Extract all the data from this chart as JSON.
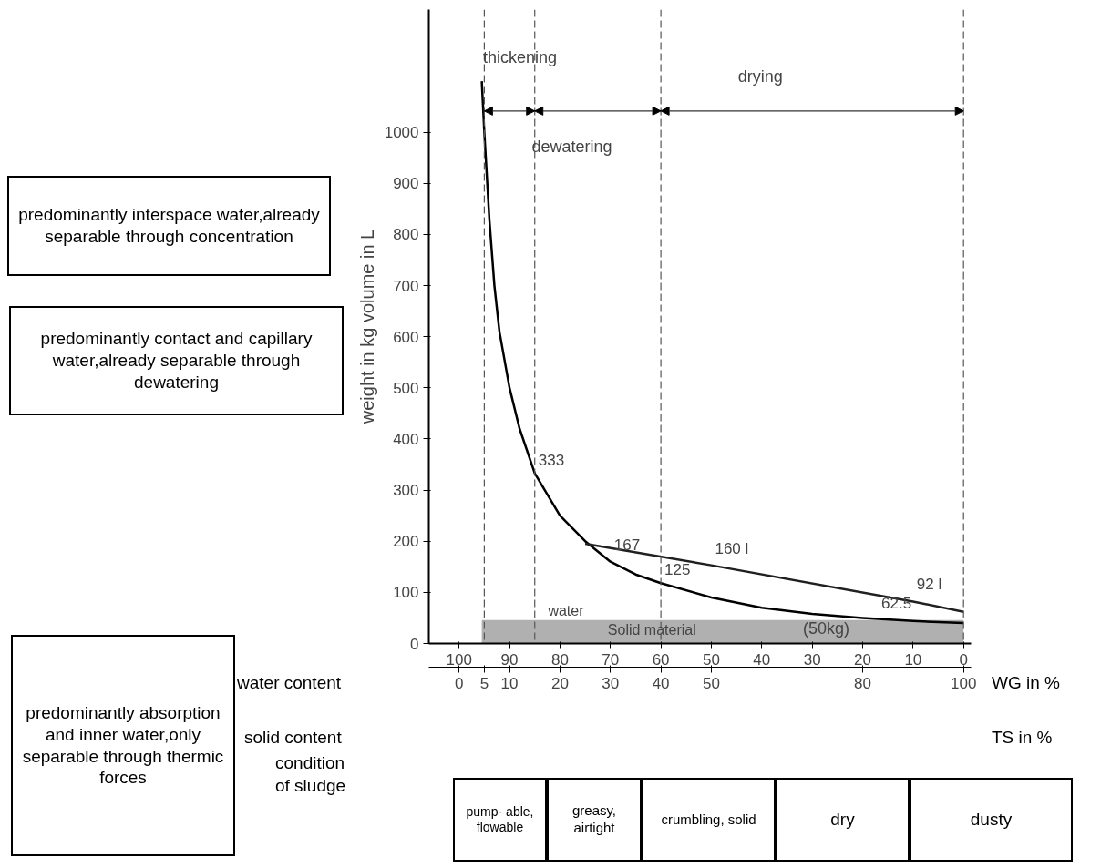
{
  "chart_data": {
    "type": "line",
    "ylabel": "weight in kg volume in L",
    "xlabel": "WG in %",
    "x2label": "TS in %",
    "xlim": [
      106,
      -1.5
    ],
    "ylim": [
      0,
      1240
    ],
    "x2lim": [
      -6,
      101.5
    ],
    "xticks": [
      100,
      90,
      80,
      70,
      60,
      50,
      40,
      30,
      20,
      10,
      0
    ],
    "x2ticks": [
      0,
      5,
      10,
      20,
      30,
      40,
      50,
      80,
      100
    ],
    "yticks": [
      0,
      100,
      200,
      300,
      400,
      500,
      600,
      700,
      800,
      900,
      1000
    ],
    "grid": false,
    "marker": "none",
    "line_style": "solid",
    "series": [
      {
        "type": "area",
        "color": "#b0b0b0",
        "x": [
          95.5,
          0
        ],
        "values": [
          46,
          46
        ]
      },
      {
        "color": "#000000",
        "x": [
          95.5,
          95,
          94,
          93,
          92,
          90,
          88,
          85,
          80,
          75,
          70,
          65,
          60,
          50,
          40,
          30,
          20,
          10,
          0
        ],
        "values": [
          1100,
          1000,
          830,
          700,
          610,
          500,
          420,
          333,
          250,
          200,
          160,
          135,
          118,
          90,
          70,
          58,
          50,
          44,
          40
        ]
      },
      {
        "color": "#202020",
        "x": [
          75,
          50,
          10,
          0
        ],
        "values": [
          195,
          153,
          82,
          62
        ]
      }
    ],
    "ref_lines": [
      {
        "axis": "x",
        "value": 95,
        "line_style": "dashed",
        "color": "#555555"
      },
      {
        "axis": "x",
        "value": 85,
        "line_style": "dashed",
        "color": "#555555"
      },
      {
        "axis": "x",
        "value": 60,
        "line_style": "dashed",
        "color": "#555555"
      },
      {
        "axis": "x",
        "value": 0,
        "line_style": "dashed",
        "color": "#555555"
      }
    ],
    "annotations": [
      "predominantly interspace water,already separable through concentration",
      "predominantly contact and capillary water,already separable through dewatering",
      "predominantly absorption and inner water,only separable through thermic forces",
      "condition of sludge",
      "pump- able, flowable",
      "greasy, airtight",
      "crumbling, solid",
      "dry",
      "dusty",
      "water content",
      "solid content",
      "thickening",
      "dewatering",
      "drying",
      "water",
      "Solid material",
      "(50kg)",
      {
        "text": "333",
        "x": 85,
        "y": 333
      },
      {
        "text": "167",
        "x": 70,
        "y": 167
      },
      {
        "text": "125",
        "x": 60,
        "y": 118
      },
      {
        "text": "160 l",
        "x": 50,
        "y": 153
      },
      {
        "text": "92 l",
        "x": 10,
        "y": 82
      },
      {
        "text": "62.5",
        "x": 17,
        "y": 52
      }
    ]
  }
}
